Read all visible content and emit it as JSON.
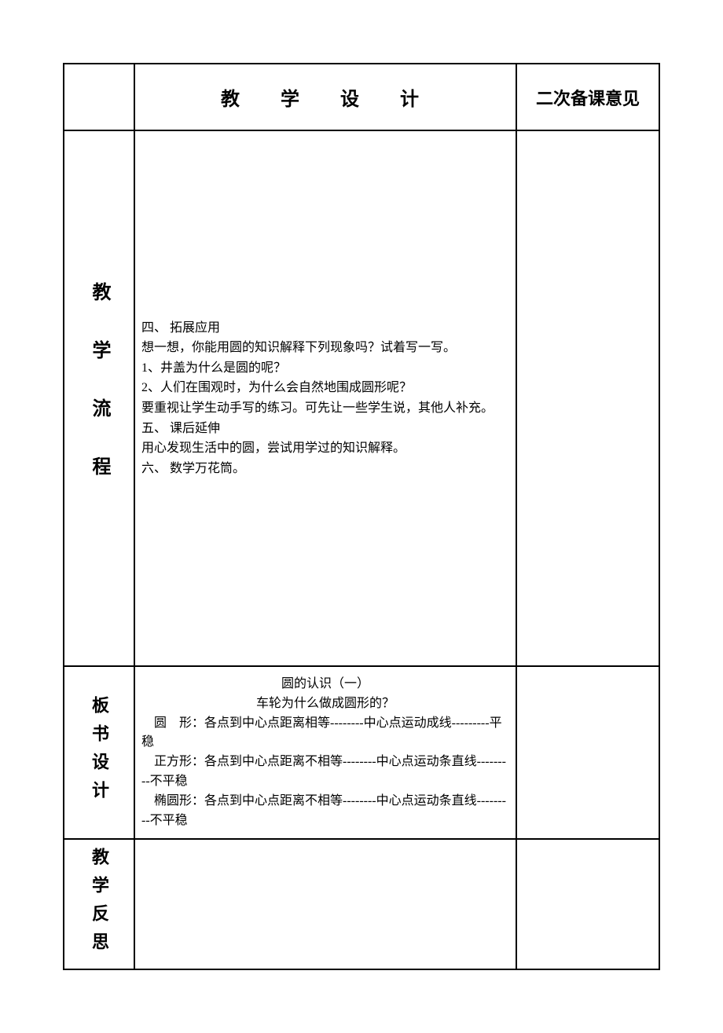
{
  "header": {
    "middle_title": "教　学　设　计",
    "right_title": "二次备课意见"
  },
  "process": {
    "label": "教学流程",
    "content": {
      "section4_title": "四、 拓展应用",
      "section4_line1": "想一想，你能用圆的知识解释下列现象吗？试着写一写。",
      "section4_line2": "1、井盖为什么是圆的呢？",
      "section4_line3": "2、人们在围观时，为什么会自然地围成圆形呢？",
      "section4_line4": "要重视让学生动手写的练习。可先让一些学生说，其他人补充。",
      "section5_title": "五、 课后延伸",
      "section5_line1": "用心发现生活中的圆，尝试用学过的知识解释。",
      "section6_title": "六、 数学万花筒。"
    }
  },
  "board": {
    "label": "板书设计",
    "title": "圆的认识（一）",
    "subtitle": "车轮为什么做成圆形的？",
    "line1": "　圆　形：各点到中心点距离相等--------中心点运动成线---------平稳",
    "line2": "　正方形：各点到中心点距离不相等--------中心点运动条直线---------不平稳",
    "line3": "　椭圆形：各点到中心点距离不相等--------中心点运动条直线---------不平稳"
  },
  "reflect": {
    "label": "教学反思"
  },
  "colors": {
    "border": "#000000",
    "background": "#ffffff",
    "text": "#000000"
  }
}
